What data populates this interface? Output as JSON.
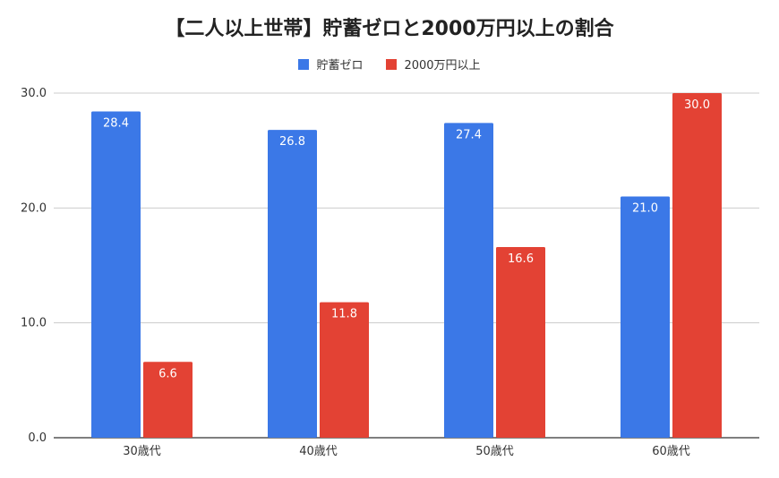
{
  "chart_data": {
    "type": "bar",
    "title": "【二人以上世帯】貯蓄ゼロと2000万円以上の割合",
    "xlabel": "",
    "ylabel": "",
    "categories": [
      "30歳代",
      "40歳代",
      "50歳代",
      "60歳代"
    ],
    "series": [
      {
        "name": "貯蓄ゼロ",
        "values": [
          28.4,
          26.8,
          27.4,
          21.0
        ],
        "color": "#3b78e7"
      },
      {
        "name": "2000万円以上",
        "values": [
          6.6,
          11.8,
          16.6,
          30.0
        ],
        "color": "#e34234"
      }
    ],
    "ylim": [
      0,
      30
    ],
    "yticks": [
      "0.0",
      "10.0",
      "20.0",
      "30.0"
    ],
    "grid": true,
    "legend": "top-center",
    "data_labels": true
  }
}
